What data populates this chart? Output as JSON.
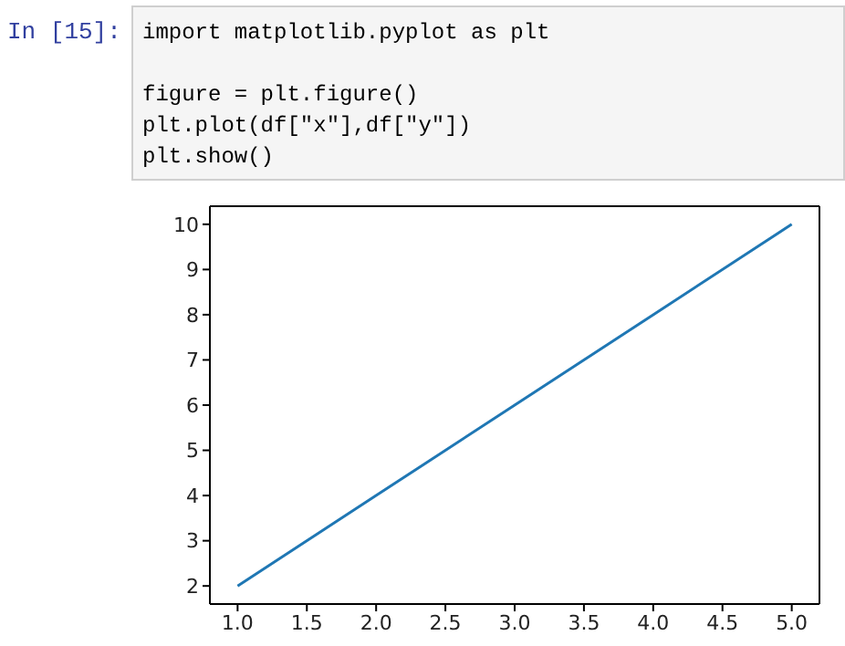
{
  "chart_data": {
    "type": "line",
    "x": [
      1,
      2,
      3,
      4,
      5
    ],
    "series": [
      {
        "color": "#1f77b4",
        "values": [
          2,
          4,
          6,
          8,
          10
        ]
      }
    ],
    "xlim": [
      0.8,
      5.2
    ],
    "xticks": [
      {
        "value": 1,
        "label": "1.0"
      },
      {
        "value": 1.5,
        "label": "1.5"
      },
      {
        "value": 2,
        "label": "2.0"
      },
      {
        "value": 2.5,
        "label": "2.5"
      },
      {
        "value": 3,
        "label": "3.0"
      },
      {
        "value": 3.5,
        "label": "3.5"
      },
      {
        "value": 4,
        "label": "4.0"
      },
      {
        "value": 4.5,
        "label": "4.5"
      },
      {
        "value": 5,
        "label": "5.0"
      }
    ],
    "ylim": [
      1.6,
      10.4
    ],
    "yticks": [
      2,
      3,
      4,
      5,
      6,
      7,
      8,
      9,
      10
    ],
    "grid": false,
    "legend": false,
    "marker": "none",
    "line_style": "solid",
    "annotations": [
      "In [15]:",
      "import matplotlib.pyplot as plt",
      "figure = plt.figure()",
      "plt.plot(df[\"x\"],df[\"y\"])",
      "plt.show()"
    ]
  }
}
